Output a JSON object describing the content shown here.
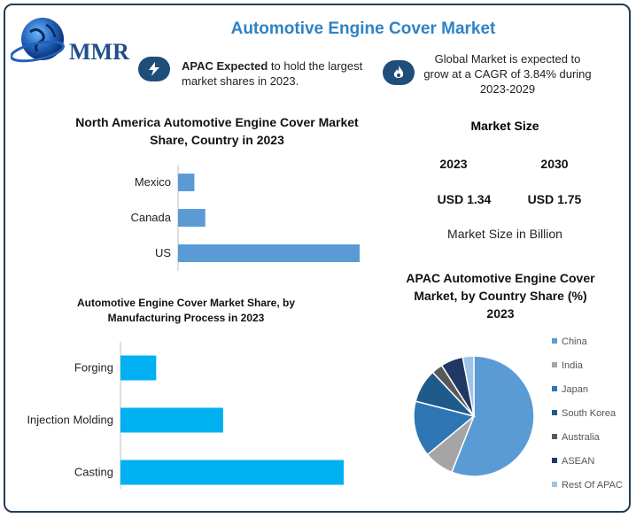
{
  "header": {
    "title": "Automotive Engine Cover Market",
    "logo_text": "MMR"
  },
  "notes": {
    "apac_bold": "APAC Expected",
    "apac_rest": " to hold the largest market shares in 2023.",
    "global": "Global Market is expected to grow at a CAGR of 3.84% during 2023-2029"
  },
  "market_size": {
    "title": "Market Size",
    "year_start": "2023",
    "year_end": "2030",
    "value_start": "USD 1.34",
    "value_end": "USD 1.75",
    "unit_label": "Market Size in Billion"
  },
  "colors": {
    "bar": "#5b9bd5",
    "frame": "#1f3e5a",
    "title": "#2f82c4",
    "icon_bg": "#1f4e7a"
  },
  "chart_data": [
    {
      "type": "bar",
      "orientation": "horizontal",
      "title": "North America Automotive Engine Cover Market Share, Country  in 2023",
      "categories": [
        "Mexico",
        "Canada",
        "US"
      ],
      "values": [
        9,
        15,
        100
      ],
      "xlim": [
        0,
        100
      ],
      "grid": false,
      "color": "#5b9bd5"
    },
    {
      "type": "bar",
      "orientation": "horizontal",
      "title": "Automotive Engine Cover Market Share, by Manufacturing Process  in 2023",
      "categories": [
        "Forging",
        "Injection Molding",
        "Casting"
      ],
      "values": [
        16,
        46,
        100
      ],
      "xlim": [
        0,
        100
      ],
      "grid": false,
      "color": "#00b0f0"
    },
    {
      "type": "pie",
      "title": "APAC Automotive Engine Cover Market, by Country Share (%) 2023",
      "legend_position": "right",
      "series": [
        {
          "name": "China",
          "value": 56,
          "color": "#5b9bd5"
        },
        {
          "name": "India",
          "value": 8,
          "color": "#a5a5a5"
        },
        {
          "name": "Japan",
          "value": 15,
          "color": "#2e75b6"
        },
        {
          "name": "South Korea",
          "value": 9,
          "color": "#1f5b8a"
        },
        {
          "name": "Australia",
          "value": 3,
          "color": "#595959"
        },
        {
          "name": "ASEAN",
          "value": 6,
          "color": "#1f3864"
        },
        {
          "name": "Rest Of APAC",
          "value": 3,
          "color": "#9dc3e6"
        }
      ]
    }
  ]
}
